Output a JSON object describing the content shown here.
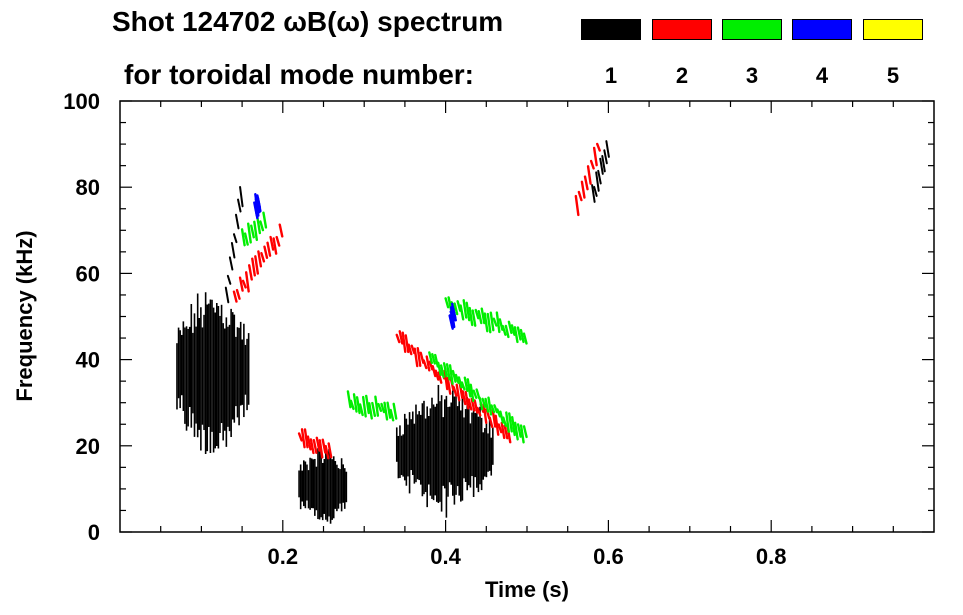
{
  "chart_data": {
    "type": "spectrogram",
    "title": "Shot 124702 ωB(ω) spectrum",
    "subtitle": "for toroidal mode number:",
    "xlabel": "Time (s)",
    "ylabel": "Frequency (kHz)",
    "xlim": [
      0.0,
      1.0
    ],
    "ylim": [
      0,
      100
    ],
    "x_ticks": [
      0.2,
      0.4,
      0.6,
      0.8
    ],
    "x_tick_labels": [
      "0.2",
      "0.4",
      "0.6",
      "0.8"
    ],
    "y_ticks": [
      0,
      20,
      40,
      60,
      80,
      100
    ],
    "y_tick_labels": [
      "0",
      "20",
      "40",
      "60",
      "80",
      "100"
    ],
    "legend": [
      {
        "mode": "1",
        "color": "#000000"
      },
      {
        "mode": "2",
        "color": "#ff0000"
      },
      {
        "mode": "3",
        "color": "#00ee00"
      },
      {
        "mode": "4",
        "color": "#0000ff"
      },
      {
        "mode": "5",
        "color": "#ffff00"
      }
    ],
    "regions": [
      {
        "mode": 1,
        "t": [
          0.07,
          0.16
        ],
        "f": [
          22,
          52
        ],
        "label": "low-frequency n=1 burst"
      },
      {
        "mode": 1,
        "t": [
          0.22,
          0.28
        ],
        "f": [
          3,
          18
        ],
        "label": "n=1 burst"
      },
      {
        "mode": 1,
        "t": [
          0.34,
          0.46
        ],
        "f": [
          8,
          30
        ],
        "label": "n=1 burst"
      },
      {
        "mode": 1,
        "t": [
          0.13,
          0.15
        ],
        "f": [
          55,
          82
        ],
        "label": "n=1 high-freq streak"
      },
      {
        "mode": 1,
        "t": [
          0.58,
          0.6
        ],
        "f": [
          78,
          90
        ],
        "label": "n=1 high-freq streak"
      },
      {
        "mode": 2,
        "t": [
          0.14,
          0.2
        ],
        "f": [
          55,
          70
        ],
        "label": "n=2 band"
      },
      {
        "mode": 2,
        "t": [
          0.34,
          0.48
        ],
        "f": [
          45,
          22
        ],
        "label": "n=2 down-chirp"
      },
      {
        "mode": 2,
        "t": [
          0.22,
          0.26
        ],
        "f": [
          22,
          18
        ],
        "label": "n=2 band"
      },
      {
        "mode": 2,
        "t": [
          0.56,
          0.59
        ],
        "f": [
          75,
          92
        ],
        "label": "n=2 streak"
      },
      {
        "mode": 3,
        "t": [
          0.38,
          0.5
        ],
        "f": [
          40,
          22
        ],
        "label": "n=3 down-chirp"
      },
      {
        "mode": 3,
        "t": [
          0.4,
          0.5
        ],
        "f": [
          53,
          45
        ],
        "label": "n=3 band"
      },
      {
        "mode": 3,
        "t": [
          0.28,
          0.34
        ],
        "f": [
          30,
          27
        ],
        "label": "n=3 band"
      },
      {
        "mode": 3,
        "t": [
          0.15,
          0.18
        ],
        "f": [
          68,
          72
        ],
        "label": "n=3 streak"
      },
      {
        "mode": 4,
        "t": [
          0.165,
          0.17
        ],
        "f": [
          75,
          77
        ],
        "label": "n=4 spot"
      },
      {
        "mode": 4,
        "t": [
          0.405,
          0.41
        ],
        "f": [
          49,
          51
        ],
        "label": "n=4 spot"
      }
    ]
  }
}
